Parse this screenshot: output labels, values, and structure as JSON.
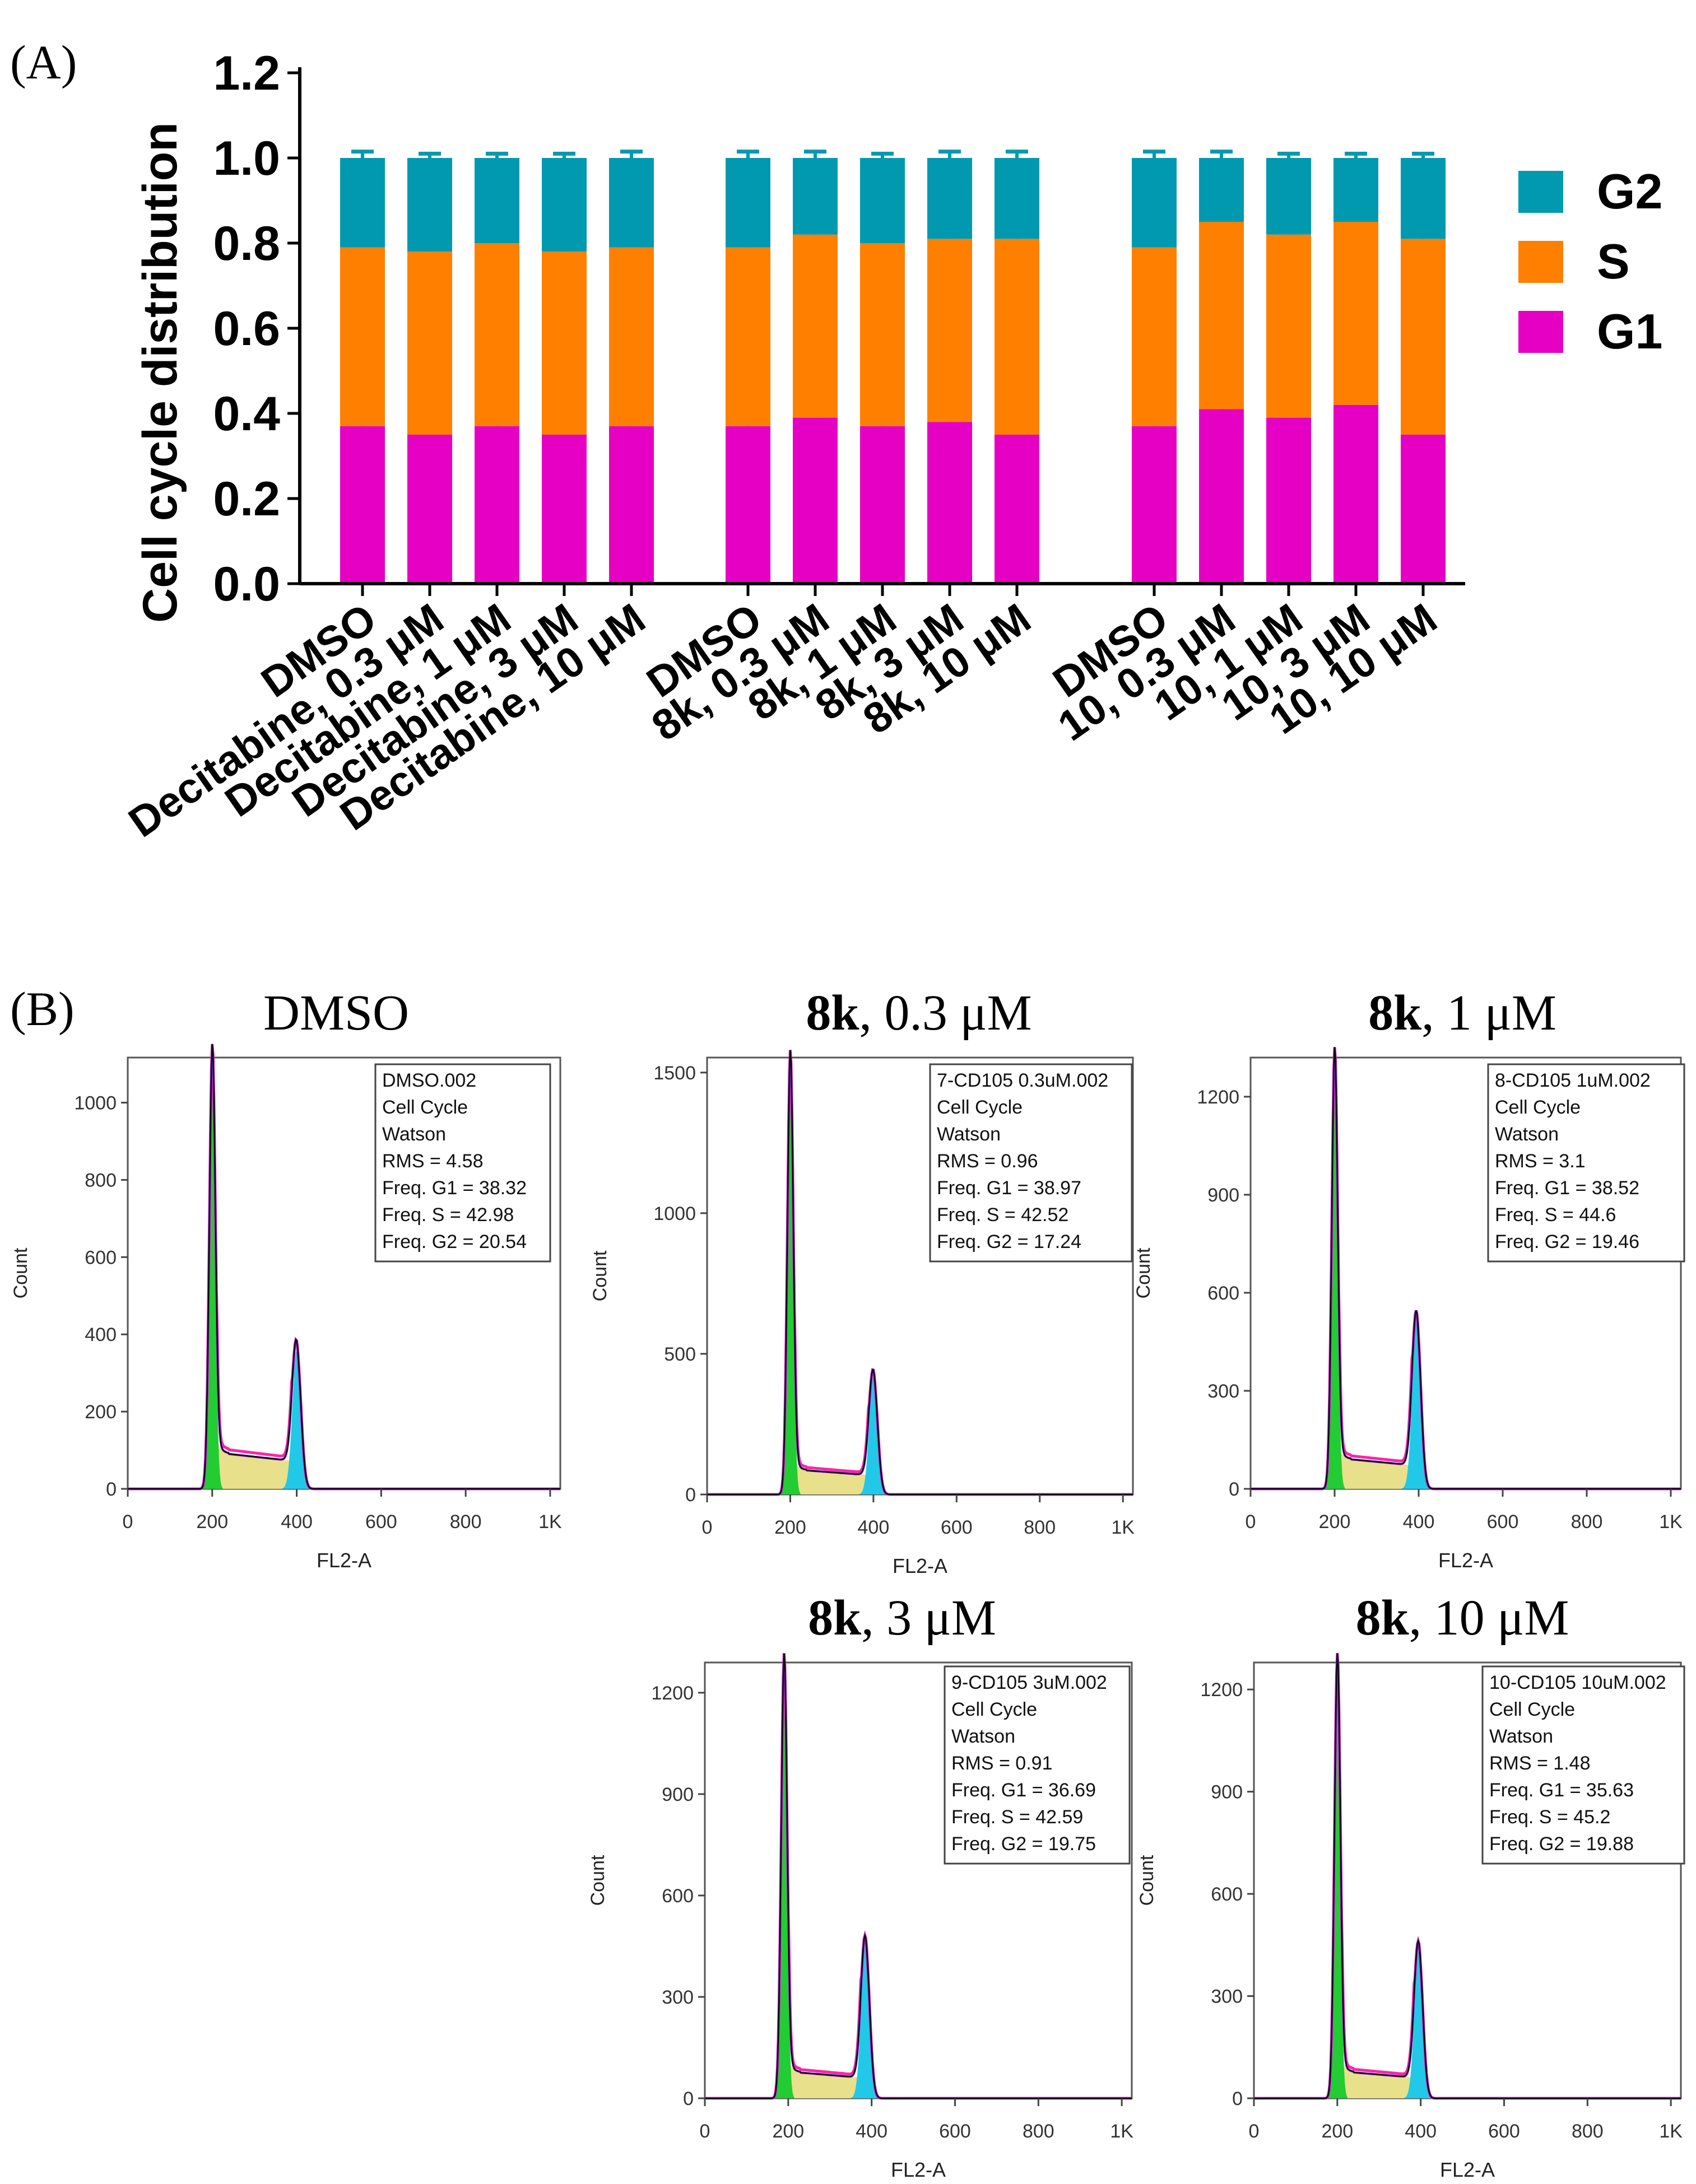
{
  "colors": {
    "G2": "#0099B0",
    "S": "#FF7F00",
    "G1": "#E600C4",
    "hist_line": "#000000",
    "hist_fill_g1": "#22CC33",
    "hist_fill_s": "#E8E08A",
    "hist_fill_g2": "#22C8E8",
    "hist_overlay": "#FF22AA",
    "hist_purple": "#7B2FB5"
  },
  "panel_a": {
    "label": "(A)",
    "chart_data": {
      "type": "bar",
      "stacked": true,
      "title": "",
      "ylabel": "Cell cycle distribution",
      "xlabel": "",
      "ylim": [
        0,
        1.2
      ],
      "yticks": [
        "0.0",
        "0.2",
        "0.4",
        "0.6",
        "0.8",
        "1.0",
        "1.2"
      ],
      "legend_position": "right",
      "legend": [
        "G2",
        "S",
        "G1"
      ],
      "groups": [
        {
          "categories": [
            "DMSO",
            "Decitabine, 0.3 μM",
            "Decitabine, 1 μM",
            "Decitabine, 3 μM",
            "Decitabine, 10 μM"
          ]
        },
        {
          "categories": [
            "DMSO",
            "8k, 0.3 μM",
            "8k, 1 μM",
            "8k, 3 μM",
            "8k, 10 μM"
          ]
        },
        {
          "categories": [
            "DMSO",
            "10, 0.3 μM",
            "10, 1 μM",
            "10, 3 μM",
            "10, 10 μM"
          ]
        }
      ],
      "series": [
        {
          "name": "G1",
          "values": [
            0.37,
            0.35,
            0.37,
            0.35,
            0.37,
            0.37,
            0.39,
            0.37,
            0.38,
            0.35,
            0.37,
            0.41,
            0.39,
            0.42,
            0.35
          ],
          "errors": [
            0.01,
            0.015,
            0.01,
            0.01,
            0.01,
            0.01,
            0.01,
            0.01,
            0.01,
            0.01,
            0.01,
            0.01,
            0.01,
            0.01,
            0.02
          ]
        },
        {
          "name": "S",
          "values": [
            0.42,
            0.43,
            0.43,
            0.43,
            0.42,
            0.42,
            0.43,
            0.43,
            0.43,
            0.46,
            0.42,
            0.44,
            0.43,
            0.43,
            0.46
          ],
          "errors": [
            0.005,
            0.015,
            0.005,
            0.01,
            0.005,
            0.005,
            0.005,
            0.005,
            0.005,
            0.01,
            0.005,
            0.005,
            0.005,
            0.01,
            0.015
          ]
        },
        {
          "name": "G2",
          "values": [
            0.21,
            0.22,
            0.2,
            0.22,
            0.21,
            0.21,
            0.18,
            0.2,
            0.19,
            0.19,
            0.21,
            0.15,
            0.18,
            0.15,
            0.19
          ],
          "errors": [
            0.015,
            0.01,
            0.01,
            0.01,
            0.015,
            0.015,
            0.015,
            0.01,
            0.015,
            0.015,
            0.015,
            0.015,
            0.01,
            0.01,
            0.01
          ]
        }
      ]
    }
  },
  "panel_b": {
    "label": "(B)",
    "chart_data": [
      {
        "type": "histogram",
        "title_bold": "",
        "title_rest": "DMSO",
        "ylim": [
          0,
          1100
        ],
        "yticks": [
          "0",
          "200",
          "400",
          "600",
          "800",
          "1000"
        ],
        "ytick_values": [
          0,
          200,
          400,
          600,
          800,
          1000
        ],
        "xlim": [
          0,
          1024
        ],
        "xticks": [
          "0",
          "200",
          "400",
          "600",
          "800",
          "1K"
        ],
        "xtick_values": [
          0,
          200,
          400,
          600,
          800,
          1000
        ],
        "xlabel": "FL2-A",
        "ylabel": "Count",
        "peaks": {
          "g1_pos": 200,
          "g1_height": 1100,
          "s_level": 95,
          "g2_pos": 400,
          "g2_height": 360
        },
        "info": [
          "DMSO.002",
          "Cell Cycle",
          "Watson",
          "RMS = 4.58",
          "Freq. G1 = 38.32",
          "Freq. S = 42.98",
          "Freq. G2 = 20.54"
        ]
      },
      {
        "type": "histogram",
        "title_bold": "8k",
        "title_rest": ", 0.3 μM",
        "ylim": [
          0,
          1530
        ],
        "yticks": [
          "0",
          "500",
          "1000",
          "1500"
        ],
        "ytick_values": [
          0,
          500,
          1000,
          1500
        ],
        "xlim": [
          0,
          1024
        ],
        "xticks": [
          "0",
          "200",
          "400",
          "600",
          "800",
          "1K"
        ],
        "xtick_values": [
          0,
          200,
          400,
          600,
          800,
          1000
        ],
        "xlabel": "FL2-A",
        "ylabel": "Count",
        "peaks": {
          "g1_pos": 200,
          "g1_height": 1530,
          "s_level": 90,
          "g2_pos": 400,
          "g2_height": 420
        },
        "info": [
          "7-CD105 0.3uM.002",
          "Cell Cycle",
          "Watson",
          "RMS = 0.96",
          "Freq. G1 = 38.97",
          "Freq. S = 42.52",
          "Freq. G2 = 17.24"
        ]
      },
      {
        "type": "histogram",
        "title_bold": "8k",
        "title_rest": ", 1 μM",
        "ylim": [
          0,
          1300
        ],
        "yticks": [
          "0",
          "300",
          "600",
          "900",
          "1200"
        ],
        "ytick_values": [
          0,
          300,
          600,
          900,
          1200
        ],
        "xlim": [
          0,
          1024
        ],
        "xticks": [
          "0",
          "200",
          "400",
          "600",
          "800",
          "1K"
        ],
        "xtick_values": [
          0,
          200,
          400,
          600,
          800,
          1000
        ],
        "xlabel": "FL2-A",
        "ylabel": "Count",
        "peaks": {
          "g1_pos": 200,
          "g1_height": 1300,
          "s_level": 95,
          "g2_pos": 395,
          "g2_height": 520
        },
        "info": [
          "8-CD105 1uM.002",
          "Cell Cycle",
          "Watson",
          "RMS = 3.1",
          "Freq. G1 = 38.52",
          "Freq. S = 44.6",
          "Freq. G2 = 19.46"
        ]
      },
      {
        "type": "histogram",
        "title_bold": "8k",
        "title_rest": ", 3 μM",
        "ylim": [
          0,
          1270
        ],
        "yticks": [
          "0",
          "300",
          "600",
          "900",
          "1200"
        ],
        "ytick_values": [
          0,
          300,
          600,
          900,
          1200
        ],
        "xlim": [
          0,
          1024
        ],
        "xticks": [
          "0",
          "200",
          "400",
          "600",
          "800",
          "1K"
        ],
        "xtick_values": [
          0,
          200,
          400,
          600,
          800,
          1000
        ],
        "xlabel": "FL2-A",
        "ylabel": "Count",
        "peaks": {
          "g1_pos": 190,
          "g1_height": 1270,
          "s_level": 80,
          "g2_pos": 385,
          "g2_height": 460
        },
        "info": [
          "9-CD105 3uM.002",
          "Cell Cycle",
          "Watson",
          "RMS = 0.91",
          "Freq. G1 = 36.69",
          "Freq. S = 42.59",
          "Freq. G2 = 19.75"
        ]
      },
      {
        "type": "histogram",
        "title_bold": "8k",
        "title_rest": ", 10 μM",
        "ylim": [
          0,
          1260
        ],
        "yticks": [
          "0",
          "300",
          "600",
          "900",
          "1200"
        ],
        "ytick_values": [
          0,
          300,
          600,
          900,
          1200
        ],
        "xlim": [
          0,
          1024
        ],
        "xticks": [
          "0",
          "200",
          "400",
          "600",
          "800",
          "1K"
        ],
        "xtick_values": [
          0,
          200,
          400,
          600,
          800,
          1000
        ],
        "xlabel": "FL2-A",
        "ylabel": "Count",
        "peaks": {
          "g1_pos": 200,
          "g1_height": 1260,
          "s_level": 80,
          "g2_pos": 395,
          "g2_height": 440
        },
        "info": [
          "10-CD105 10uM.002",
          "Cell Cycle",
          "Watson",
          "RMS = 1.48",
          "Freq. G1 = 35.63",
          "Freq. S = 45.2",
          "Freq. G2 = 19.88"
        ]
      }
    ]
  }
}
